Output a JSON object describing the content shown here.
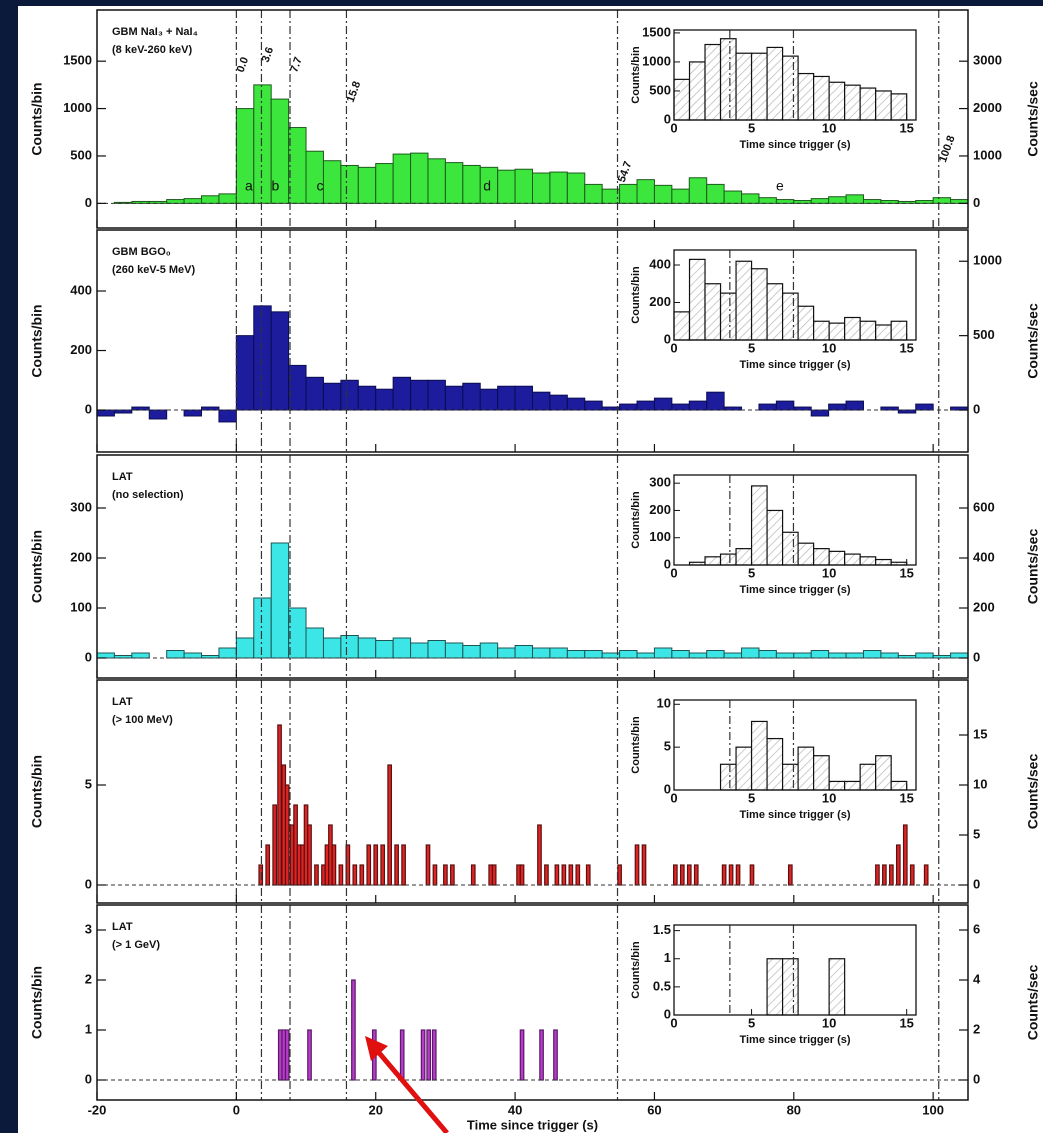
{
  "chart_data": [
    {
      "type": "histogram",
      "title": "GBM NaI₃ + NaI₄",
      "subtitle": "(8 keV-260 keV)",
      "color": "#3ce63c",
      "edge": "#1d5a1d",
      "bins": [
        -20,
        -17.5,
        -15,
        -12.5,
        -10,
        -7.5,
        -5,
        -2.5,
        0,
        2.5,
        5,
        7.5,
        10,
        12.5,
        15,
        17.5,
        20,
        22.5,
        25,
        27.5,
        30,
        32.5,
        35,
        37.5,
        40,
        42.5,
        45,
        47.5,
        50,
        52.5,
        55,
        57.5,
        60,
        62.5,
        65,
        67.5,
        70,
        72.5,
        75,
        77.5,
        80,
        82.5,
        85,
        87.5,
        90,
        92.5,
        95,
        97.5,
        100,
        102.5,
        105
      ],
      "values": [
        0,
        10,
        20,
        20,
        40,
        50,
        80,
        100,
        1000,
        1250,
        1100,
        800,
        550,
        450,
        400,
        380,
        420,
        520,
        530,
        470,
        430,
        400,
        380,
        350,
        360,
        320,
        330,
        320,
        200,
        150,
        200,
        250,
        190,
        150,
        270,
        200,
        130,
        100,
        60,
        40,
        30,
        50,
        70,
        90,
        40,
        30,
        20,
        30,
        60,
        40
      ],
      "xlim": [
        -20,
        105
      ],
      "ylim": [
        -260,
        2040
      ],
      "yticks": [
        0,
        500,
        1000,
        1500
      ],
      "y2lim": [
        -520,
        4080
      ],
      "y2ticks": [
        0,
        1000,
        2000,
        3000
      ],
      "ylabel": "Counts/bin",
      "y2label": "Counts/sec",
      "markers": [
        {
          "value": 0,
          "label": "0.0"
        },
        3.6,
        7.7,
        15.8,
        54.7,
        100.8
      ],
      "annotations": [
        {
          "text": "a",
          "x": 1.8
        },
        {
          "text": "b",
          "x": 5.6
        },
        {
          "text": "c",
          "x": 12
        },
        {
          "text": "d",
          "x": 36
        },
        {
          "text": "e",
          "x": 78
        }
      ],
      "inset": {
        "type": "histogram",
        "bins": [
          0,
          1,
          2,
          3,
          4,
          5,
          6,
          7,
          8,
          9,
          10,
          11,
          12,
          13,
          14,
          15
        ],
        "values": [
          700,
          1000,
          1300,
          1400,
          1150,
          1150,
          1250,
          1100,
          800,
          750,
          650,
          600,
          550,
          500,
          450
        ],
        "xlim": [
          0,
          15.6
        ],
        "ylim": [
          0,
          1550
        ],
        "xticks": [
          0,
          5,
          10,
          15
        ],
        "yticks": [
          0,
          500,
          1000,
          1500
        ],
        "xlabel": "Time since trigger (s)",
        "ylabel": "Counts/bin",
        "markers": [
          3.6,
          7.7
        ]
      }
    },
    {
      "type": "histogram",
      "title": "GBM BGO₀",
      "subtitle": "(260 keV-5 MeV)",
      "color": "#1c1c9c",
      "edge": "#0c0c50",
      "bins": [
        -20,
        -17.5,
        -15,
        -12.5,
        -10,
        -7.5,
        -5,
        -2.5,
        0,
        2.5,
        5,
        7.5,
        10,
        12.5,
        15,
        17.5,
        20,
        22.5,
        25,
        27.5,
        30,
        32.5,
        35,
        37.5,
        40,
        42.5,
        45,
        47.5,
        50,
        52.5,
        55,
        57.5,
        60,
        62.5,
        65,
        67.5,
        70,
        72.5,
        75,
        77.5,
        80,
        82.5,
        85,
        87.5,
        90,
        92.5,
        95,
        97.5,
        100,
        102.5,
        105
      ],
      "values": [
        -20,
        -10,
        10,
        -30,
        0,
        -20,
        10,
        -40,
        250,
        350,
        330,
        150,
        110,
        90,
        100,
        80,
        70,
        110,
        100,
        100,
        80,
        90,
        70,
        80,
        80,
        60,
        50,
        40,
        30,
        10,
        20,
        30,
        40,
        20,
        30,
        60,
        10,
        0,
        20,
        30,
        10,
        -20,
        20,
        30,
        0,
        10,
        -10,
        20,
        0,
        10
      ],
      "xlim": [
        -20,
        105
      ],
      "ylim": [
        -141,
        605
      ],
      "yticks": [
        0,
        200,
        400
      ],
      "y2lim": [
        -282,
        1210
      ],
      "y2ticks": [
        0,
        500,
        1000
      ],
      "ylabel": "Counts/bin",
      "y2label": "Counts/sec",
      "inset": {
        "type": "histogram",
        "bins": [
          0,
          1,
          2,
          3,
          4,
          5,
          6,
          7,
          8,
          9,
          10,
          11,
          12,
          13,
          14,
          15
        ],
        "values": [
          150,
          430,
          300,
          250,
          420,
          380,
          300,
          250,
          180,
          100,
          90,
          120,
          100,
          80,
          100
        ],
        "xlim": [
          0,
          15.6
        ],
        "ylim": [
          0,
          480
        ],
        "xticks": [
          0,
          5,
          10,
          15
        ],
        "yticks": [
          0,
          200,
          400
        ],
        "xlabel": "Time since trigger (s)",
        "ylabel": "Counts/bin",
        "markers": [
          3.6,
          7.7
        ]
      }
    },
    {
      "type": "histogram",
      "title": "LAT",
      "subtitle": "(no selection)",
      "color": "#3ce6e6",
      "edge": "#1d5555",
      "bins": [
        -20,
        -17.5,
        -15,
        -12.5,
        -10,
        -7.5,
        -5,
        -2.5,
        0,
        2.5,
        5,
        7.5,
        10,
        12.5,
        15,
        17.5,
        20,
        22.5,
        25,
        27.5,
        30,
        32.5,
        35,
        37.5,
        40,
        42.5,
        45,
        47.5,
        50,
        52.5,
        55,
        57.5,
        60,
        62.5,
        65,
        67.5,
        70,
        72.5,
        75,
        77.5,
        80,
        82.5,
        85,
        87.5,
        90,
        92.5,
        95,
        97.5,
        100,
        102.5,
        105
      ],
      "values": [
        10,
        5,
        10,
        0,
        15,
        10,
        5,
        20,
        40,
        120,
        230,
        100,
        60,
        40,
        45,
        40,
        35,
        40,
        30,
        35,
        30,
        25,
        30,
        20,
        25,
        20,
        20,
        15,
        15,
        10,
        15,
        10,
        20,
        15,
        10,
        15,
        10,
        20,
        15,
        10,
        10,
        15,
        10,
        10,
        15,
        10,
        5,
        10,
        5,
        10
      ],
      "xlim": [
        -20,
        105
      ],
      "ylim": [
        -40,
        406
      ],
      "yticks": [
        0,
        100,
        200,
        300
      ],
      "y2lim": [
        -80,
        812
      ],
      "y2ticks": [
        200,
        400,
        600,
        0
      ],
      "ylabel": "Counts/bin",
      "y2label": "Counts/sec",
      "inset": {
        "type": "histogram",
        "bins": [
          0,
          1,
          2,
          3,
          4,
          5,
          6,
          7,
          8,
          9,
          10,
          11,
          12,
          13,
          14,
          15
        ],
        "values": [
          0,
          10,
          30,
          40,
          60,
          290,
          200,
          120,
          80,
          60,
          50,
          40,
          30,
          20,
          10
        ],
        "xlim": [
          0,
          15.6
        ],
        "ylim": [
          0,
          330
        ],
        "xticks": [
          0,
          5,
          10,
          15
        ],
        "yticks": [
          0,
          100,
          200,
          300
        ],
        "xlabel": "Time since trigger (s)",
        "ylabel": "Counts/bin",
        "markers": [
          3.6,
          7.7
        ]
      }
    },
    {
      "type": "bar",
      "title": "LAT",
      "subtitle": "(> 100 MeV)",
      "color": "#e02424",
      "edge": "#5a1010",
      "x": [
        3.5,
        4.5,
        5.5,
        6.2,
        6.8,
        7.3,
        8,
        8.5,
        9,
        9.5,
        10,
        10.5,
        11.5,
        12.5,
        13,
        13.5,
        14,
        15,
        16,
        17,
        18,
        19,
        20,
        21,
        22,
        23,
        24,
        27.5,
        28.5,
        30,
        31,
        34,
        36.5,
        37,
        40.5,
        41,
        43.5,
        44.5,
        46,
        47,
        48,
        49,
        50.5,
        55,
        57.5,
        58.5,
        63,
        64,
        65,
        66,
        70,
        71,
        72,
        74,
        79.5,
        92,
        93,
        94,
        95,
        96,
        97,
        99
      ],
      "values": [
        1,
        2,
        4,
        8,
        6,
        5,
        3,
        4,
        2,
        2,
        4,
        3,
        1,
        1,
        2,
        3,
        2,
        1,
        2,
        1,
        1,
        2,
        2,
        2,
        6,
        2,
        2,
        2,
        1,
        1,
        1,
        1,
        1,
        1,
        1,
        1,
        3,
        1,
        1,
        1,
        1,
        1,
        1,
        1,
        2,
        2,
        1,
        1,
        1,
        1,
        1,
        1,
        1,
        1,
        1,
        1,
        1,
        1,
        2,
        3,
        1,
        1
      ],
      "xlim": [
        -20,
        105
      ],
      "ylim": [
        -0.9,
        10.25
      ],
      "yticks": [
        0,
        5
      ],
      "y2lim": [
        -1.8,
        20.5
      ],
      "y2ticks": [
        0,
        5,
        10,
        15
      ],
      "ylabel": "Counts/bin",
      "y2label": "Counts/sec",
      "inset": {
        "type": "histogram",
        "bins": [
          0,
          1,
          2,
          3,
          4,
          5,
          6,
          7,
          8,
          9,
          10,
          11,
          12,
          13,
          14,
          15
        ],
        "values": [
          0,
          0,
          0,
          3,
          5,
          8,
          6,
          3,
          5,
          4,
          1,
          1,
          3,
          4,
          1
        ],
        "xlim": [
          0,
          15.6
        ],
        "ylim": [
          0,
          10.5
        ],
        "xticks": [
          0,
          5,
          10,
          15
        ],
        "yticks": [
          0,
          5,
          10
        ],
        "xlabel": "Time since trigger (s)",
        "ylabel": "Counts/bin",
        "markers": [
          3.6,
          7.7
        ]
      }
    },
    {
      "type": "bar",
      "title": "LAT",
      "subtitle": "(> 1 GeV)",
      "color": "#b93cc8",
      "edge": "#5a1a6a",
      "x": [
        6.3,
        6.8,
        7.3,
        10.5,
        16.8,
        19.8,
        23.8,
        26.8,
        27.6,
        28.4,
        41,
        43.8,
        45.8
      ],
      "values": [
        1,
        1,
        1,
        1,
        2,
        1,
        1,
        1,
        1,
        1,
        1,
        1,
        1
      ],
      "xlim": [
        -20,
        105
      ],
      "ylim": [
        -0.4,
        3.5
      ],
      "yticks": [
        0,
        1,
        2,
        3
      ],
      "y2lim": [
        -0.8,
        7
      ],
      "y2ticks": [
        0,
        2,
        4,
        6
      ],
      "xticks": [
        -20,
        0,
        20,
        40,
        60,
        80,
        100
      ],
      "xlabel": "Time since trigger (s)",
      "ylabel": "Counts/bin",
      "y2label": "Counts/sec",
      "inset": {
        "type": "histogram",
        "bins": [
          0,
          1,
          2,
          3,
          4,
          5,
          6,
          7,
          8,
          9,
          10,
          11,
          12,
          13,
          14,
          15
        ],
        "values": [
          0,
          0,
          0,
          0,
          0,
          0,
          1,
          1,
          0,
          0,
          1,
          0,
          0,
          0,
          0
        ],
        "xlim": [
          0,
          15.6
        ],
        "ylim": [
          0,
          1.6
        ],
        "xticks": [
          0,
          5,
          10,
          15
        ],
        "yticks": [
          0,
          0.5,
          1,
          1.5
        ],
        "xlabel": "Time since trigger (s)",
        "ylabel": "Counts/bin",
        "markers": [
          3.6,
          7.7
        ]
      }
    }
  ]
}
